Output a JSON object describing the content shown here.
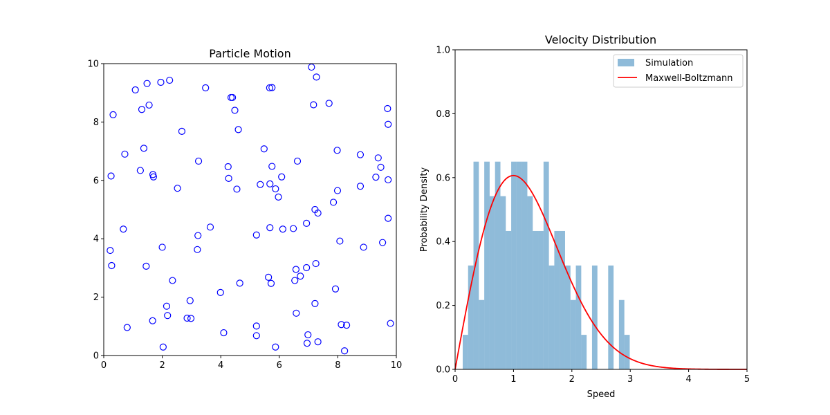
{
  "chart_data": [
    {
      "type": "scatter",
      "title": "Particle Motion",
      "xlabel": "",
      "ylabel": "",
      "xlim": [
        0,
        10
      ],
      "ylim": [
        0,
        10
      ],
      "xticks": [
        "0",
        "2",
        "4",
        "6",
        "8",
        "10"
      ],
      "yticks": [
        "0",
        "2",
        "4",
        "6",
        "8",
        "10"
      ],
      "marker": "hollow-circle",
      "color": "#0000ff",
      "points": [
        [
          0.25,
          6.15
        ],
        [
          0.32,
          8.25
        ],
        [
          0.72,
          6.9
        ],
        [
          1.08,
          9.1
        ],
        [
          1.3,
          8.43
        ],
        [
          1.37,
          7.1
        ],
        [
          1.48,
          9.32
        ],
        [
          1.55,
          8.58
        ],
        [
          1.25,
          6.34
        ],
        [
          1.68,
          6.2
        ],
        [
          1.7,
          6.12
        ],
        [
          1.95,
          9.36
        ],
        [
          2.25,
          9.43
        ],
        [
          2.67,
          7.68
        ],
        [
          2.52,
          5.73
        ],
        [
          3.48,
          9.17
        ],
        [
          3.24,
          6.66
        ],
        [
          4.35,
          8.84
        ],
        [
          4.4,
          8.84
        ],
        [
          4.48,
          8.4
        ],
        [
          4.6,
          7.74
        ],
        [
          4.25,
          6.47
        ],
        [
          4.27,
          6.07
        ],
        [
          4.55,
          5.7
        ],
        [
          5.67,
          9.17
        ],
        [
          5.75,
          9.18
        ],
        [
          5.48,
          7.08
        ],
        [
          5.75,
          6.48
        ],
        [
          5.35,
          5.86
        ],
        [
          5.68,
          5.88
        ],
        [
          5.87,
          5.71
        ],
        [
          6.08,
          6.12
        ],
        [
          5.97,
          5.43
        ],
        [
          6.62,
          6.66
        ],
        [
          7.1,
          9.88
        ],
        [
          7.27,
          9.54
        ],
        [
          7.17,
          8.59
        ],
        [
          7.7,
          8.64
        ],
        [
          7.98,
          7.03
        ],
        [
          8.77,
          6.88
        ],
        [
          9.38,
          6.77
        ],
        [
          9.47,
          6.45
        ],
        [
          9.3,
          6.11
        ],
        [
          9.7,
          8.46
        ],
        [
          9.72,
          7.92
        ],
        [
          9.72,
          6.02
        ],
        [
          8.77,
          5.8
        ],
        [
          7.99,
          5.65
        ],
        [
          7.85,
          5.25
        ],
        [
          7.22,
          5.0
        ],
        [
          7.32,
          4.88
        ],
        [
          6.93,
          4.53
        ],
        [
          9.72,
          4.7
        ],
        [
          0.22,
          3.6
        ],
        [
          0.27,
          3.08
        ],
        [
          0.67,
          4.33
        ],
        [
          1.45,
          3.06
        ],
        [
          2.0,
          3.71
        ],
        [
          3.22,
          4.11
        ],
        [
          3.2,
          3.63
        ],
        [
          3.64,
          4.4
        ],
        [
          5.68,
          4.38
        ],
        [
          5.22,
          4.13
        ],
        [
          6.12,
          4.33
        ],
        [
          6.48,
          4.35
        ],
        [
          8.07,
          3.92
        ],
        [
          8.88,
          3.71
        ],
        [
          9.53,
          3.87
        ],
        [
          7.25,
          3.15
        ],
        [
          6.57,
          2.95
        ],
        [
          6.93,
          3.01
        ],
        [
          6.72,
          2.72
        ],
        [
          6.53,
          2.57
        ],
        [
          5.63,
          2.68
        ],
        [
          5.72,
          2.47
        ],
        [
          4.65,
          2.48
        ],
        [
          3.99,
          2.16
        ],
        [
          2.35,
          2.57
        ],
        [
          2.95,
          1.88
        ],
        [
          2.15,
          1.69
        ],
        [
          2.18,
          1.37
        ],
        [
          1.67,
          1.19
        ],
        [
          2.85,
          1.28
        ],
        [
          2.98,
          1.27
        ],
        [
          0.8,
          0.96
        ],
        [
          2.03,
          0.29
        ],
        [
          4.1,
          0.78
        ],
        [
          5.22,
          1.01
        ],
        [
          5.22,
          0.68
        ],
        [
          5.87,
          0.29
        ],
        [
          6.58,
          1.45
        ],
        [
          7.22,
          1.78
        ],
        [
          7.92,
          2.28
        ],
        [
          6.98,
          0.71
        ],
        [
          6.95,
          0.42
        ],
        [
          7.32,
          0.47
        ],
        [
          8.12,
          1.06
        ],
        [
          8.3,
          1.04
        ],
        [
          8.23,
          0.16
        ],
        [
          9.8,
          1.1
        ]
      ]
    },
    {
      "type": "bar",
      "title": "Velocity Distribution",
      "xlabel": "Speed",
      "ylabel": "Probability Density",
      "xlim": [
        0,
        5
      ],
      "ylim": [
        0,
        1
      ],
      "xticks": [
        "0",
        "1",
        "2",
        "3",
        "4",
        "5"
      ],
      "yticks": [
        "0.0",
        "0.2",
        "0.4",
        "0.6",
        "0.8",
        "1.0"
      ],
      "legend_position": "top-right",
      "series": [
        {
          "name": "Simulation",
          "kind": "histogram",
          "color": "#1f77b4",
          "alpha": 0.5,
          "bin_start": 0.13,
          "bin_width": 0.0923,
          "values": [
            0.108,
            0.325,
            0.65,
            0.217,
            0.65,
            0.542,
            0.65,
            0.542,
            0.433,
            0.65,
            0.65,
            0.65,
            0.542,
            0.433,
            0.433,
            0.65,
            0.325,
            0.433,
            0.433,
            0.325,
            0.217,
            0.325,
            0.108,
            0.0,
            0.325,
            0.0,
            0.0,
            0.325,
            0.0,
            0.217,
            0.108
          ]
        },
        {
          "name": "Maxwell-Boltzmann",
          "kind": "line",
          "color": "#ff0000",
          "function": "x*exp(-x^2/2)",
          "x_range": [
            0,
            5
          ]
        }
      ]
    }
  ]
}
